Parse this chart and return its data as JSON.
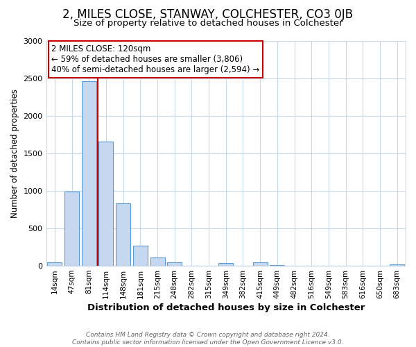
{
  "title": "2, MILES CLOSE, STANWAY, COLCHESTER, CO3 0JB",
  "subtitle": "Size of property relative to detached houses in Colchester",
  "xlabel": "Distribution of detached houses by size in Colchester",
  "ylabel": "Number of detached properties",
  "bar_labels": [
    "14sqm",
    "47sqm",
    "81sqm",
    "114sqm",
    "148sqm",
    "181sqm",
    "215sqm",
    "248sqm",
    "282sqm",
    "315sqm",
    "349sqm",
    "382sqm",
    "415sqm",
    "449sqm",
    "482sqm",
    "516sqm",
    "549sqm",
    "583sqm",
    "616sqm",
    "650sqm",
    "683sqm"
  ],
  "bar_values": [
    50,
    990,
    2460,
    1660,
    830,
    270,
    115,
    50,
    0,
    0,
    35,
    0,
    45,
    10,
    0,
    0,
    0,
    0,
    0,
    0,
    20
  ],
  "bar_color": "#c5d8f0",
  "bar_edge_color": "#5b9bd5",
  "property_line_color": "#cc0000",
  "annotation_title": "2 MILES CLOSE: 120sqm",
  "annotation_line1": "← 59% of detached houses are smaller (3,806)",
  "annotation_line2": "40% of semi-detached houses are larger (2,594) →",
  "annotation_box_color": "#cc0000",
  "ylim": [
    0,
    3000
  ],
  "yticks": [
    0,
    500,
    1000,
    1500,
    2000,
    2500,
    3000
  ],
  "footer_line1": "Contains HM Land Registry data © Crown copyright and database right 2024.",
  "footer_line2": "Contains public sector information licensed under the Open Government Licence v3.0.",
  "bg_color": "#ffffff",
  "grid_color": "#c8d8e8"
}
